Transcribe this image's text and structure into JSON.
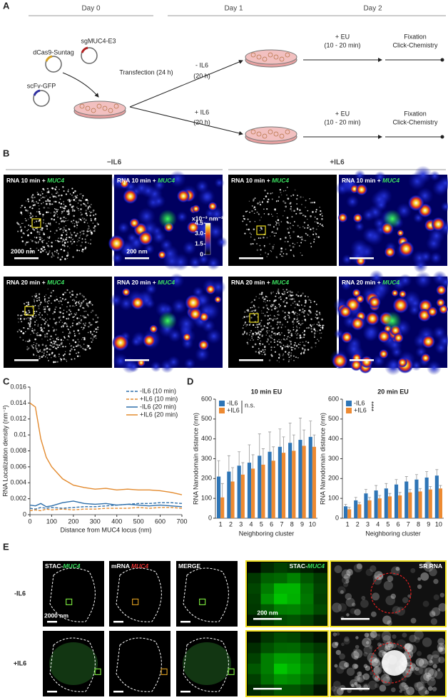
{
  "panel_a": {
    "label": "A",
    "days": [
      "Day 0",
      "Day 1",
      "Day 2"
    ],
    "plasmids": [
      "dCas9-Suntag",
      "sgMUC4-E3",
      "scFv-GFP"
    ],
    "transfection": "Transfection (24 h)",
    "conditions": [
      {
        "label": "- IL6",
        "duration": "(20 h)"
      },
      {
        "label": "+ IL6",
        "duration": "(20 h)"
      }
    ],
    "eu": {
      "label": "+ EU",
      "duration": "(10 - 20 min)"
    },
    "fixation": {
      "line1": "Fixation",
      "line2": "Click-Chemistry"
    }
  },
  "panel_b": {
    "label": "B",
    "groups": [
      "−IL6",
      "+IL6"
    ],
    "rows": [
      {
        "prefix": "RNA 10 min + ",
        "gene": "MUC4"
      },
      {
        "prefix": "RNA 20 min + ",
        "gene": "MUC4"
      }
    ],
    "scale_bars": [
      "2000 nm",
      "200 nm"
    ],
    "colorbar": {
      "unit": "x10⁻³ nm⁻²",
      "ticks": [
        0,
        1.5,
        {
          "value": 3,
          "label": "3.0"
        },
        4.5
      ]
    }
  },
  "chart_data": [
    {
      "type": "line",
      "label": "C",
      "xlabel": "Distance from MUC4 locus (nm)",
      "ylabel": "RNA Localization density (nm⁻²)",
      "x": [
        0,
        25,
        50,
        75,
        100,
        150,
        200,
        250,
        300,
        350,
        400,
        450,
        500,
        550,
        600,
        650,
        700
      ],
      "xlim": [
        0,
        700
      ],
      "xticks": [
        0,
        100,
        200,
        300,
        400,
        500,
        600,
        700
      ],
      "ylim": [
        0,
        0.016
      ],
      "yticks": [
        0,
        0.002,
        0.004,
        0.006,
        0.008,
        0.01,
        0.012,
        0.014,
        0.016
      ],
      "legend": "upper right",
      "series": [
        {
          "name": "-IL6 (10 min)",
          "color": "#2e6faa",
          "dashed": true,
          "values": [
            0.0008,
            0.0007,
            0.0009,
            0.0008,
            0.0009,
            0.0008,
            0.0009,
            0.001,
            0.001,
            0.0011,
            0.0012,
            0.0013,
            0.0014,
            0.0014,
            0.0015,
            0.0015,
            0.0014
          ]
        },
        {
          "name": "+IL6 (10 min)",
          "color": "#e38a2e",
          "dashed": true,
          "values": [
            0.0005,
            0.0006,
            0.0005,
            0.0007,
            0.0006,
            0.0007,
            0.0006,
            0.0007,
            0.0007,
            0.0008,
            0.0008,
            0.0008,
            0.0009,
            0.0008,
            0.0009,
            0.0009,
            0.0008
          ]
        },
        {
          "name": "-IL6 (20 min)",
          "color": "#2e6faa",
          "dashed": false,
          "values": [
            0.0012,
            0.0011,
            0.0014,
            0.001,
            0.0011,
            0.0015,
            0.0017,
            0.0014,
            0.0013,
            0.0014,
            0.0012,
            0.0013,
            0.0012,
            0.0011,
            0.0012,
            0.0011,
            0.001
          ]
        },
        {
          "name": "+IL6 (20 min)",
          "color": "#e38a2e",
          "dashed": false,
          "values": [
            0.014,
            0.0135,
            0.0095,
            0.0072,
            0.006,
            0.0045,
            0.0037,
            0.0034,
            0.0032,
            0.0033,
            0.0031,
            0.0032,
            0.0031,
            0.0031,
            0.003,
            0.0028,
            0.0025
          ]
        }
      ]
    },
    {
      "type": "bar",
      "label": "D",
      "title": "10 min EU",
      "xlabel": "Neighboring cluster",
      "ylabel": "RNA Nanodomain distance (nm)",
      "categories": [
        "1",
        "2",
        "3",
        "4",
        "5",
        "6",
        "7",
        "8",
        "9",
        "10"
      ],
      "ylim": [
        0,
        600
      ],
      "yticks": [
        0,
        100,
        200,
        300,
        400,
        500,
        600
      ],
      "legend": "upper left",
      "annotation": "n.s.",
      "series": [
        {
          "name": "-IL6",
          "color": "#2e75b6",
          "values": [
            210,
            235,
            265,
            280,
            315,
            335,
            360,
            380,
            395,
            410
          ],
          "errors": [
            80,
            80,
            70,
            90,
            110,
            100,
            90,
            100,
            110,
            80
          ]
        },
        {
          "name": "+IL6",
          "color": "#ed8a32",
          "values": [
            105,
            185,
            220,
            250,
            270,
            290,
            330,
            340,
            365,
            360
          ],
          "errors": [
            70,
            70,
            60,
            70,
            80,
            70,
            80,
            80,
            80,
            60
          ]
        }
      ]
    },
    {
      "type": "bar",
      "title": "20 min EU",
      "xlabel": "Neighboring cluster",
      "ylabel": "RNA Nanodomain distance (nm)",
      "categories": [
        "1",
        "2",
        "3",
        "4",
        "5",
        "6",
        "7",
        "8",
        "9",
        "10"
      ],
      "ylim": [
        0,
        600
      ],
      "yticks": [
        0,
        100,
        200,
        300,
        400,
        500,
        600
      ],
      "legend": "upper left",
      "annotation": "****",
      "series": [
        {
          "name": "-IL6",
          "color": "#2e75b6",
          "values": [
            60,
            90,
            125,
            140,
            150,
            170,
            185,
            195,
            205,
            215
          ],
          "errors": [
            10,
            15,
            20,
            25,
            25,
            25,
            25,
            25,
            30,
            30
          ]
        },
        {
          "name": "+IL6",
          "color": "#ed8a32",
          "values": [
            45,
            70,
            90,
            100,
            110,
            115,
            130,
            135,
            145,
            150
          ],
          "errors": [
            10,
            10,
            15,
            15,
            15,
            15,
            15,
            15,
            15,
            15
          ]
        }
      ]
    }
  ],
  "panel_e": {
    "label": "E",
    "rows": [
      "-IL6",
      "+IL6"
    ],
    "columns": [
      {
        "prefix": "STAC-",
        "gene": "MUC4"
      },
      {
        "prefix": "mRNA ",
        "gene": "MUC4"
      },
      {
        "text": "MERGE"
      },
      {
        "prefix": "STAC-",
        "gene": "MUC4"
      },
      {
        "text": "SR RNA"
      }
    ],
    "scale_bars": [
      "2000 nm",
      "200 nm"
    ]
  }
}
